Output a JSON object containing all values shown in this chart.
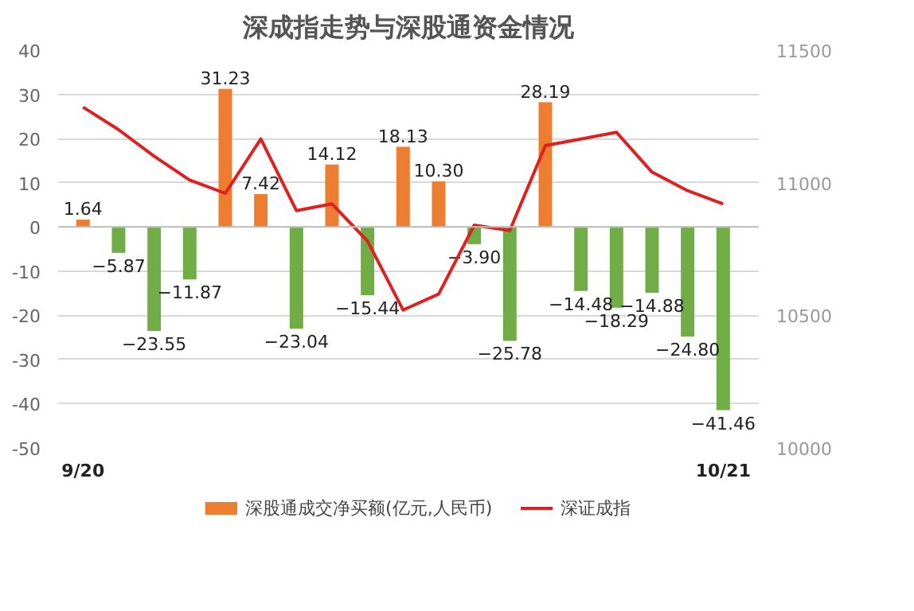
{
  "chart_data": {
    "type": "bar",
    "title": "深成指走势与深股通资金情况",
    "categories": [
      "9/20",
      null,
      null,
      null,
      null,
      null,
      null,
      null,
      null,
      null,
      null,
      null,
      null,
      null,
      null,
      null,
      null,
      null,
      "10/21"
    ],
    "series": [
      {
        "name": "深股通成交净买额(亿元,人民币)",
        "values": [
          1.64,
          -5.87,
          -23.55,
          -11.87,
          31.23,
          7.42,
          -23.04,
          14.12,
          -15.44,
          18.13,
          10.3,
          -3.9,
          -25.78,
          28.19,
          -14.48,
          -18.29,
          -14.88,
          -24.8,
          -41.46
        ],
        "value_labels": [
          "1.64",
          "−5.87",
          "−23.55",
          "−11.87",
          "31.23",
          "7.42",
          "−23.04",
          "14.12",
          "−15.44",
          "18.13",
          "10.30",
          "−3.90",
          "−25.78",
          "28.19",
          "−14.48",
          "−18.29",
          "−14.88",
          "−24.80",
          "−41.46"
        ],
        "colors": [
          "#ed7d31",
          "#70ad47",
          "#70ad47",
          "#70ad47",
          "#ed7d31",
          "#ed7d31",
          "#70ad47",
          "#ed7d31",
          "#70ad47",
          "#ed7d31",
          "#ed7d31",
          "#70ad47",
          "#70ad47",
          "#ed7d31",
          "#70ad47",
          "#70ad47",
          "#70ad47",
          "#70ad47",
          "#70ad47"
        ]
      },
      {
        "name": "深证成指",
        "type": "line",
        "axis": "y2",
        "color": "#e02020",
        "values": [
          11285,
          11200,
          11100,
          11010,
          10960,
          11165,
          10895,
          10920,
          10780,
          10520,
          10580,
          10840,
          10820,
          11140,
          11165,
          11190,
          11040,
          10970,
          10920
        ]
      }
    ],
    "ylim": [
      -50,
      40
    ],
    "yticks": [
      -50,
      -40,
      -30,
      -20,
      -10,
      0,
      10,
      20,
      30,
      40
    ],
    "y2lim": [
      10000,
      11500
    ],
    "y2ticks": [
      10000,
      10500,
      11000,
      11500
    ],
    "grid": "y",
    "legend": "bottom"
  }
}
